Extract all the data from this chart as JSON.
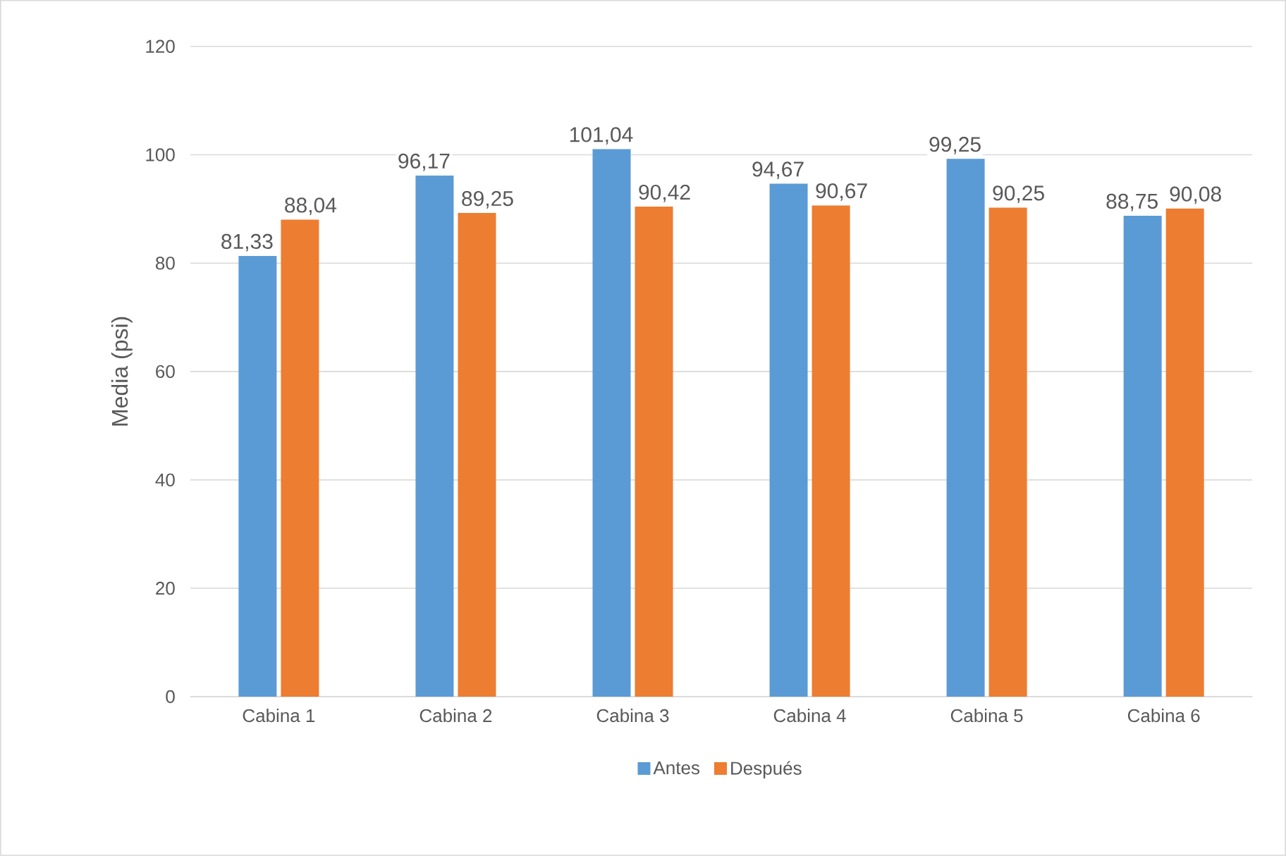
{
  "chart_data": {
    "type": "bar",
    "ylabel": "Media (psi)",
    "categories": [
      "Cabina 1",
      "Cabina 2",
      "Cabina 3",
      "Cabina 4",
      "Cabina 5",
      "Cabina 6"
    ],
    "series": [
      {
        "name": "Antes",
        "color": "#5b9bd5",
        "values": [
          81.33,
          96.17,
          101.04,
          94.67,
          99.25,
          88.75
        ],
        "value_labels": [
          "81,33",
          "96,17",
          "101,04",
          "94,67",
          "99,25",
          "88,75"
        ]
      },
      {
        "name": "Después",
        "color": "#ed7d31",
        "values": [
          88.04,
          89.25,
          90.42,
          90.67,
          90.25,
          90.08
        ],
        "value_labels": [
          "88,04",
          "89,25",
          "90,42",
          "90,67",
          "90,25",
          "90,08"
        ]
      }
    ],
    "ylim": [
      0,
      120
    ],
    "yticks": [
      0,
      20,
      40,
      60,
      80,
      100,
      120
    ],
    "grid": "y",
    "legend": "bottom"
  }
}
